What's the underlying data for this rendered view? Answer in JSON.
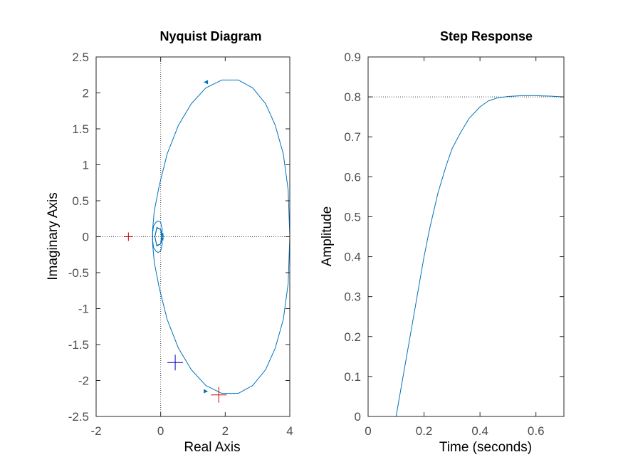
{
  "chart_data": [
    {
      "type": "line",
      "title": "Nyquist Diagram",
      "xlabel": "Real Axis",
      "ylabel": "Imaginary Axis",
      "xlim": [
        -2,
        4
      ],
      "ylim": [
        -2.5,
        2.5
      ],
      "xticks": [
        "-2",
        "0",
        "2",
        "4"
      ],
      "yticks": [
        "-2.5",
        "-2",
        "-1.5",
        "-1",
        "-0.5",
        "0",
        "0.5",
        "1",
        "1.5",
        "2",
        "2.5"
      ],
      "grid": false,
      "line_color": "#0072BD",
      "reference_lines": {
        "x": 0,
        "y": 0,
        "color": "#444444",
        "style": "dotted"
      },
      "series": [
        {
          "x": [
            4,
            3.95,
            3.8,
            3.55,
            3.25,
            2.85,
            2.4,
            1.9,
            1.4,
            0.95,
            0.55,
            0.2,
            -0.05,
            -0.2,
            -0.25,
            -0.25,
            -0.22,
            -0.15,
            -0.08,
            0.0,
            0.05,
            0.0,
            -0.12,
            -0.18,
            -0.12,
            0.0,
            0.08,
            0.07,
            0.03
          ],
          "y": [
            0,
            0.65,
            1.15,
            1.55,
            1.85,
            2.07,
            2.18,
            2.18,
            2.07,
            1.85,
            1.55,
            1.15,
            0.7,
            0.35,
            0.1,
            -0.05,
            -0.15,
            -0.2,
            -0.22,
            -0.2,
            -0.1,
            0.1,
            0.13,
            0.0,
            -0.12,
            -0.1,
            0.0,
            0.05,
            0.0
          ]
        },
        {
          "x": [
            4,
            3.95,
            3.8,
            3.55,
            3.25,
            2.85,
            2.4,
            1.9,
            1.4,
            0.95,
            0.55,
            0.2,
            -0.05,
            -0.2,
            -0.25,
            -0.25,
            -0.22,
            -0.15,
            -0.08,
            0.0,
            0.05,
            0.0,
            -0.12,
            -0.18,
            -0.12,
            0.0,
            0.08,
            0.07,
            0.03
          ],
          "y": [
            0,
            -0.65,
            -1.15,
            -1.55,
            -1.85,
            -2.07,
            -2.18,
            -2.18,
            -2.07,
            -1.85,
            -1.55,
            -1.15,
            -0.7,
            -0.35,
            -0.1,
            0.05,
            0.15,
            0.2,
            0.22,
            0.2,
            0.1,
            -0.1,
            -0.13,
            0.0,
            0.12,
            0.1,
            0.0,
            -0.05,
            0.0
          ]
        }
      ],
      "direction_arrows": [
        {
          "x": 1.4,
          "y": 2.15,
          "dx": -1,
          "dy": 0
        },
        {
          "x": 1.4,
          "y": -2.15,
          "dx": 1,
          "dy": 0
        }
      ],
      "markers": [
        {
          "x": -1,
          "y": 0,
          "color": "#CC0000",
          "size": "small"
        },
        {
          "x": 0.45,
          "y": -1.75,
          "color": "#0000CC",
          "size": "large"
        },
        {
          "x": 1.8,
          "y": -2.2,
          "color": "#CC0000",
          "size": "large"
        }
      ]
    },
    {
      "type": "line",
      "title": "Step Response",
      "xlabel": "Time (seconds)",
      "ylabel": "Amplitude",
      "xlim": [
        0,
        0.7
      ],
      "ylim": [
        0,
        0.9
      ],
      "xticks": [
        "0",
        "0.2",
        "0.4",
        "0.6"
      ],
      "yticks": [
        "0",
        "0.1",
        "0.2",
        "0.3",
        "0.4",
        "0.5",
        "0.6",
        "0.7",
        "0.8",
        "0.9"
      ],
      "grid": false,
      "line_color": "#0072BD",
      "steady_state": 0.8,
      "series": [
        {
          "x": [
            0,
            0.1,
            0.12,
            0.15,
            0.18,
            0.2,
            0.22,
            0.25,
            0.28,
            0.3,
            0.33,
            0.36,
            0.4,
            0.43,
            0.46,
            0.5,
            0.55,
            0.6,
            0.65,
            0.7
          ],
          "y": [
            0,
            0,
            0.08,
            0.2,
            0.32,
            0.4,
            0.47,
            0.56,
            0.63,
            0.67,
            0.71,
            0.745,
            0.775,
            0.79,
            0.797,
            0.801,
            0.803,
            0.803,
            0.802,
            0.8
          ]
        }
      ]
    }
  ]
}
